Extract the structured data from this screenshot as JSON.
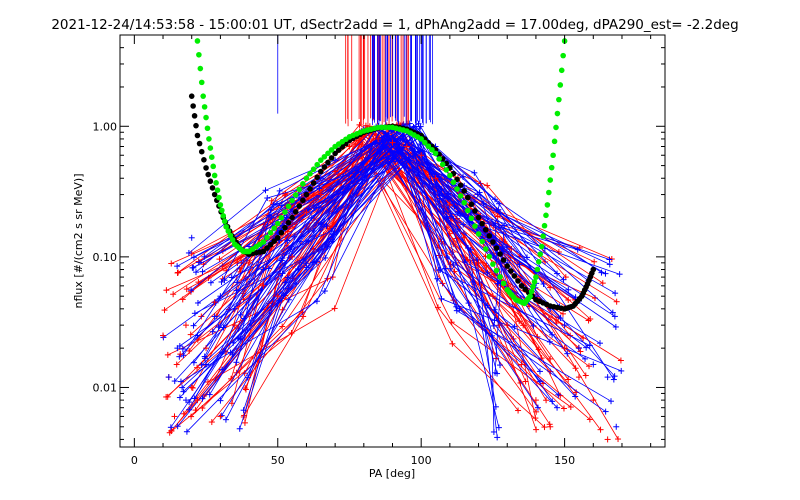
{
  "chart_data": {
    "type": "line",
    "title": "2021-12-24/14:53:58 - 15:00:01 UT, dSectr2add = 1, dPhAng2add = 17.00deg, dPA290_est=  -2.2deg",
    "xlabel": "PA [deg]",
    "ylabel": "nflux [#/(cm2 s sr MeV)]",
    "xlim": [
      -5,
      185
    ],
    "ylim": [
      0.0035,
      5.0
    ],
    "yscale": "log",
    "x_ticks": [
      0,
      50,
      100,
      150
    ],
    "x_tick_labels": [
      "0",
      "50",
      "100",
      "150"
    ],
    "y_ticks": [
      0.01,
      0.1,
      1.0
    ],
    "y_tick_labels": [
      "0.01",
      "0.10",
      "1.00"
    ],
    "grid": false,
    "colors": {
      "red_series": "#ff0000",
      "blue_series": "#0000ff",
      "black_fit": "#000000",
      "green_fit": "#00ee00"
    },
    "series": [
      {
        "color": "#000000",
        "style": "thick-dotted",
        "x": [
          20,
          22,
          25,
          28,
          31,
          34,
          37,
          40,
          45,
          50,
          55,
          60,
          65,
          70,
          75,
          80,
          85,
          90,
          95,
          100,
          105,
          110,
          115,
          120,
          125,
          130,
          135,
          140,
          145,
          150,
          153,
          156,
          158,
          160
        ],
        "y": [
          1.7,
          0.85,
          0.48,
          0.3,
          0.2,
          0.145,
          0.115,
          0.105,
          0.11,
          0.14,
          0.2,
          0.3,
          0.45,
          0.62,
          0.78,
          0.9,
          0.97,
          1.0,
          0.95,
          0.85,
          0.66,
          0.48,
          0.32,
          0.2,
          0.13,
          0.085,
          0.06,
          0.047,
          0.042,
          0.04,
          0.042,
          0.05,
          0.062,
          0.08
        ]
      },
      {
        "color": "#00ee00",
        "style": "thick-dotted",
        "x": [
          22,
          24,
          26,
          28,
          30,
          32,
          35,
          38,
          40,
          45,
          50,
          55,
          60,
          65,
          70,
          75,
          80,
          85,
          90,
          95,
          100,
          105,
          110,
          115,
          120,
          125,
          130,
          133,
          136,
          138,
          140,
          142,
          144,
          146,
          148,
          150
        ],
        "y": [
          4.5,
          1.7,
          0.8,
          0.42,
          0.25,
          0.17,
          0.125,
          0.11,
          0.11,
          0.13,
          0.18,
          0.27,
          0.4,
          0.55,
          0.7,
          0.83,
          0.92,
          0.98,
          0.98,
          0.92,
          0.8,
          0.62,
          0.42,
          0.26,
          0.15,
          0.088,
          0.056,
          0.047,
          0.044,
          0.05,
          0.07,
          0.12,
          0.25,
          0.6,
          1.6,
          4.5
        ]
      }
    ],
    "scatter_samples": {
      "red": {
        "x": [
          10,
          12,
          14,
          16,
          18,
          20,
          22,
          25,
          28,
          30,
          35,
          40,
          45,
          50,
          55,
          60,
          65,
          70,
          75,
          80,
          85,
          90,
          95,
          100,
          105,
          110,
          115,
          120,
          125,
          130,
          135,
          140,
          145,
          150,
          155,
          160,
          165
        ],
        "y": [
          0.025,
          0.012,
          0.006,
          0.018,
          0.03,
          0.01,
          0.008,
          0.02,
          0.045,
          0.006,
          0.03,
          0.09,
          0.06,
          0.05,
          0.1,
          0.22,
          0.3,
          0.45,
          0.7,
          0.85,
          0.8,
          0.75,
          0.7,
          0.6,
          0.4,
          0.25,
          0.14,
          0.09,
          0.05,
          0.03,
          0.015,
          0.008,
          0.005,
          0.02,
          0.012,
          0.008,
          0.004
        ]
      },
      "blue": {
        "x": [
          12,
          15,
          18,
          20,
          22,
          25,
          28,
          30,
          35,
          40,
          45,
          50,
          55,
          60,
          65,
          70,
          75,
          80,
          85,
          90,
          95,
          100,
          105,
          110,
          115,
          120,
          125,
          130,
          135,
          140,
          145,
          150,
          155,
          160,
          165,
          168
        ],
        "y": [
          0.012,
          0.02,
          0.008,
          0.14,
          0.025,
          0.015,
          0.035,
          0.05,
          0.04,
          0.12,
          0.08,
          0.15,
          0.2,
          0.3,
          0.4,
          0.55,
          0.8,
          0.95,
          1.0,
          0.95,
          0.9,
          0.85,
          0.7,
          0.5,
          0.35,
          0.2,
          0.14,
          0.09,
          0.06,
          0.05,
          0.04,
          0.03,
          0.02,
          0.015,
          0.012,
          0.005
        ]
      }
    }
  }
}
